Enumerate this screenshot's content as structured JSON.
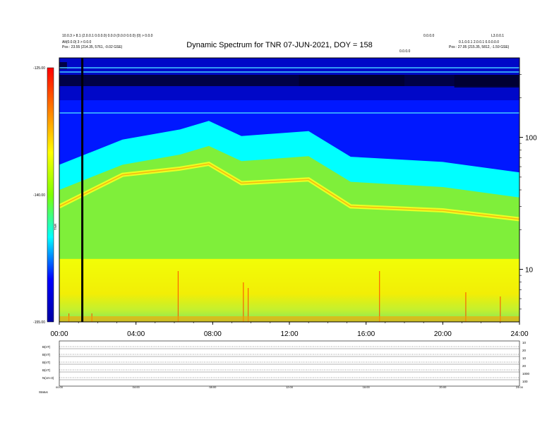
{
  "header": {
    "title": "Dynamic Spectrum for TNR 07-JUN-2021, DOY = 158",
    "left_line1": "10.0.3 > 8.1 (2.0.0.1 0.0.0.0) 0.0.0 (0.0.0 0.0.0) (0) > 0.0.0",
    "left_line2": "Alt(0.0.0) 3 > 0.0.0",
    "left_line3": "Pos : 23.55 (214.35, 5761, -0.02 GSE)",
    "right_line0": "L3.0.0.1",
    "right_line1": "0.1.0.0.1 2.0.0.1 0.0.0.0.0",
    "right_line2": "Pos : 27.05 (215.35, 5812, -1.59 GSE)",
    "mid_label": "0.0.0.0",
    "near_label": "0.0.0.0"
  },
  "chart_data": {
    "type": "heatmap",
    "title": "Dynamic Spectrum for TNR 07-JUN-2021, DOY = 158",
    "x_ticks": [
      "00:00",
      "04:00",
      "08:00",
      "12:00",
      "16:00",
      "20:00",
      "24:00"
    ],
    "x_range_hours": [
      0,
      24
    ],
    "y_scale": "log",
    "y_ticks": [
      10,
      100
    ],
    "y_range_khz": [
      4,
      400
    ],
    "colorbar": {
      "ticks": [
        "-125.00",
        "-140.00",
        "-155.00"
      ],
      "range": [
        -155,
        -125
      ],
      "label": "TNR",
      "colors": [
        "#0000a0",
        "#0000ff",
        "#00ffff",
        "#7fff00",
        "#ffff00",
        "#ff8000",
        "#ff0000"
      ]
    },
    "features": {
      "data_gap_hours": 1.2,
      "spectrum_boundary": [
        {
          "hour": 0,
          "upper_band_top_khz": 40,
          "plasma_line_khz": 30
        },
        {
          "hour": 3.3,
          "upper_band_top_khz": 62,
          "plasma_line_khz": 52
        },
        {
          "hour": 6.3,
          "upper_band_top_khz": 74,
          "plasma_line_khz": 58
        },
        {
          "hour": 7.8,
          "upper_band_top_khz": 86,
          "plasma_line_khz": 63
        },
        {
          "hour": 9.5,
          "upper_band_top_khz": 66,
          "plasma_line_khz": 45
        },
        {
          "hour": 13.0,
          "upper_band_top_khz": 72,
          "plasma_line_khz": 48
        },
        {
          "hour": 15.2,
          "upper_band_top_khz": 46,
          "plasma_line_khz": 30
        },
        {
          "hour": 20.0,
          "upper_band_top_khz": 42,
          "plasma_line_khz": 28
        },
        {
          "hour": 24.0,
          "upper_band_top_khz": 35,
          "plasma_line_khz": 24
        }
      ]
    },
    "bottom_panels": {
      "labels": [
        "B(nT)",
        "B(nT)",
        "B(nT)",
        "B(nT)",
        "N(cm-3)"
      ],
      "right_ticks": [
        "10",
        "20",
        "10",
        "20",
        "1000",
        "100"
      ],
      "footer_label": "Status"
    }
  }
}
